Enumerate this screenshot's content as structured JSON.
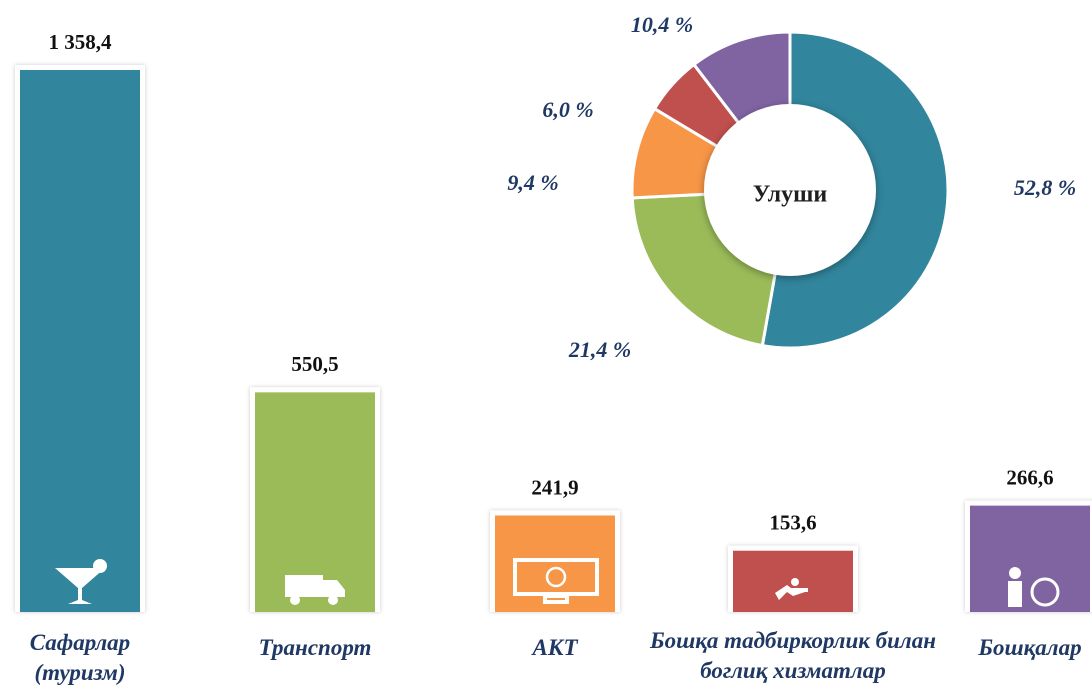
{
  "chart_data": [
    {
      "type": "bar",
      "categories": [
        "Сафарлар (туризм)",
        "Транспорт",
        "АКТ",
        "Бошқа тадбиркорлик билан боглиқ хизматлар",
        "Бошқалар"
      ],
      "values": [
        1358.4,
        550.5,
        241.9,
        153.6,
        266.6
      ],
      "value_labels": [
        "1 358,4",
        "550,5",
        "241,9",
        "153,6",
        "266,6"
      ],
      "colors": [
        "#31859c",
        "#9bbb59",
        "#f79646",
        "#c0504d",
        "#8064a2"
      ]
    },
    {
      "type": "donut",
      "center_label": "Улуши",
      "values": [
        52.8,
        21.4,
        9.4,
        6.0,
        10.4
      ],
      "value_labels": [
        "52,8 %",
        "21,4 %",
        "9,4 %",
        "6,0 %",
        "10,4 %"
      ],
      "colors": [
        "#31859c",
        "#9bbb59",
        "#f79646",
        "#c0504d",
        "#8064a2"
      ]
    }
  ]
}
